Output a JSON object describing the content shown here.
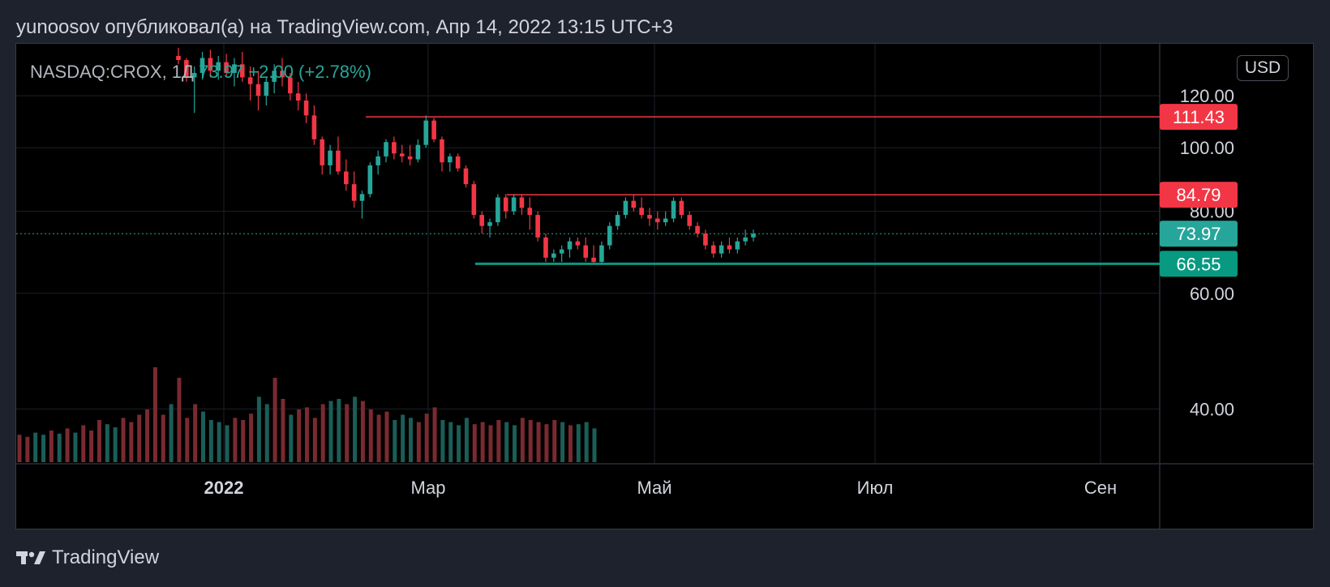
{
  "header": {
    "text": "yunoosov опубликовал(а) на TradingView.com, Апр 14, 2022 13:15 UTC+3"
  },
  "legend": {
    "symbol": "NASDAQ:CROX, 1Д",
    "close": "73.97",
    "change": "+2.00 (+2.78%)"
  },
  "currency_label": "USD",
  "footer": {
    "brand": "TradingView"
  },
  "colors": {
    "up": "#26a69a",
    "down": "#f23645",
    "background": "#000000",
    "grid": "#1c1f27",
    "text": "#d1d4dc"
  },
  "icons": {
    "logo": "tradingview-logo-icon"
  },
  "chart_data": {
    "type": "candlestick",
    "scale": "log",
    "ylim": [
      33,
      144
    ],
    "y_ticks": [
      "40.00",
      "60.00",
      "80.00",
      "100.00",
      "120.00"
    ],
    "x_ticks": [
      "2022",
      "Мар",
      "Май",
      "Июл",
      "Сен"
    ],
    "grid": true,
    "candles_ohlc": [
      [
        138,
        142,
        134,
        136
      ],
      [
        136,
        137,
        126,
        128
      ],
      [
        128,
        133,
        113,
        130
      ],
      [
        130,
        140,
        127,
        137
      ],
      [
        137,
        141,
        128,
        131
      ],
      [
        131,
        138,
        127,
        135
      ],
      [
        135,
        139,
        128,
        130
      ],
      [
        130,
        137,
        124,
        134
      ],
      [
        134,
        140,
        126,
        128
      ],
      [
        128,
        133,
        118,
        125
      ],
      [
        125,
        131,
        114,
        120
      ],
      [
        120,
        128,
        116,
        126
      ],
      [
        126,
        134,
        121,
        131
      ],
      [
        131,
        137,
        124,
        128
      ],
      [
        128,
        130,
        118,
        121
      ],
      [
        121,
        126,
        114,
        118
      ],
      [
        118,
        121,
        109,
        112
      ],
      [
        112,
        116,
        101,
        103
      ],
      [
        103,
        104,
        91,
        94
      ],
      [
        94,
        101,
        91,
        99
      ],
      [
        99,
        104,
        91,
        92
      ],
      [
        92,
        96,
        86,
        88
      ],
      [
        88,
        92,
        81,
        83
      ],
      [
        83,
        86,
        78,
        85
      ],
      [
        85,
        95,
        84,
        94
      ],
      [
        94,
        99,
        91,
        97
      ],
      [
        97,
        103,
        95,
        102
      ],
      [
        102,
        104,
        96,
        98
      ],
      [
        98,
        101,
        95,
        97
      ],
      [
        97,
        101,
        94,
        96
      ],
      [
        96,
        103,
        95,
        101
      ],
      [
        101,
        112,
        100,
        110
      ],
      [
        110,
        111,
        102,
        103
      ],
      [
        103,
        104,
        92,
        95
      ],
      [
        95,
        98,
        92,
        97
      ],
      [
        97,
        98,
        92,
        93
      ],
      [
        93,
        94,
        87,
        88
      ],
      [
        88,
        89,
        78,
        79
      ],
      [
        79,
        80,
        74,
        76
      ],
      [
        76,
        78,
        73,
        77
      ],
      [
        77,
        85,
        76,
        84
      ],
      [
        84,
        85,
        78,
        80
      ],
      [
        80,
        85,
        79,
        84
      ],
      [
        84,
        85,
        79,
        81
      ],
      [
        81,
        84,
        75,
        79
      ],
      [
        79,
        80,
        72,
        73
      ],
      [
        73,
        74,
        67,
        68
      ],
      [
        68,
        70,
        67,
        69
      ],
      [
        69,
        71,
        67,
        70
      ],
      [
        70,
        73,
        68,
        72
      ],
      [
        72,
        73,
        70,
        71
      ],
      [
        71,
        73,
        67,
        68
      ],
      [
        68,
        71,
        66.5,
        67
      ],
      [
        67,
        72,
        66.5,
        71
      ],
      [
        71,
        77,
        70,
        76
      ],
      [
        76,
        80,
        75,
        79
      ],
      [
        79,
        84,
        78,
        83
      ],
      [
        83,
        84.8,
        80,
        81
      ],
      [
        81,
        84,
        78,
        79
      ],
      [
        79,
        81,
        76,
        78
      ],
      [
        78,
        80,
        75,
        77
      ],
      [
        77,
        80,
        76,
        78
      ],
      [
        78,
        84,
        77,
        83
      ],
      [
        83,
        84,
        78,
        79
      ],
      [
        79,
        80,
        75,
        76
      ],
      [
        76,
        77,
        73,
        74
      ],
      [
        74,
        75,
        70,
        71
      ],
      [
        71,
        72,
        68,
        69
      ],
      [
        69,
        72,
        68,
        71
      ],
      [
        71,
        73,
        69,
        70
      ],
      [
        70,
        73,
        69,
        72
      ],
      [
        72,
        75,
        71,
        73
      ],
      [
        73,
        75,
        72,
        73.97
      ]
    ],
    "volume_relative": [
      0.26,
      0.24,
      0.28,
      0.26,
      0.3,
      0.27,
      0.32,
      0.28,
      0.35,
      0.3,
      0.4,
      0.36,
      0.33,
      0.42,
      0.38,
      0.45,
      0.5,
      0.9,
      0.45,
      0.55,
      0.8,
      0.42,
      0.55,
      0.48,
      0.4,
      0.38,
      0.35,
      0.42,
      0.4,
      0.46,
      0.62,
      0.55,
      0.8,
      0.6,
      0.45,
      0.5,
      0.52,
      0.42,
      0.55,
      0.58,
      0.6,
      0.55,
      0.62,
      0.58,
      0.5,
      0.45,
      0.48,
      0.4,
      0.45,
      0.42,
      0.38,
      0.46,
      0.52,
      0.4,
      0.38,
      0.35,
      0.42,
      0.36,
      0.38,
      0.35,
      0.4,
      0.38,
      0.35,
      0.42,
      0.4,
      0.38,
      0.36,
      0.4,
      0.38,
      0.35,
      0.36,
      0.38,
      0.32
    ],
    "horizontal_levels": [
      {
        "price": 111.43,
        "label": "111.43",
        "color": "#f23645",
        "thick": false
      },
      {
        "price": 84.79,
        "label": "84.79",
        "color": "#f23645",
        "thick": false
      },
      {
        "price": 66.55,
        "label": "66.55",
        "color": "#089981",
        "thick": true
      }
    ],
    "current_price": {
      "price": 73.97,
      "label": "73.97",
      "color": "#26a69a"
    },
    "currency": "USD"
  }
}
